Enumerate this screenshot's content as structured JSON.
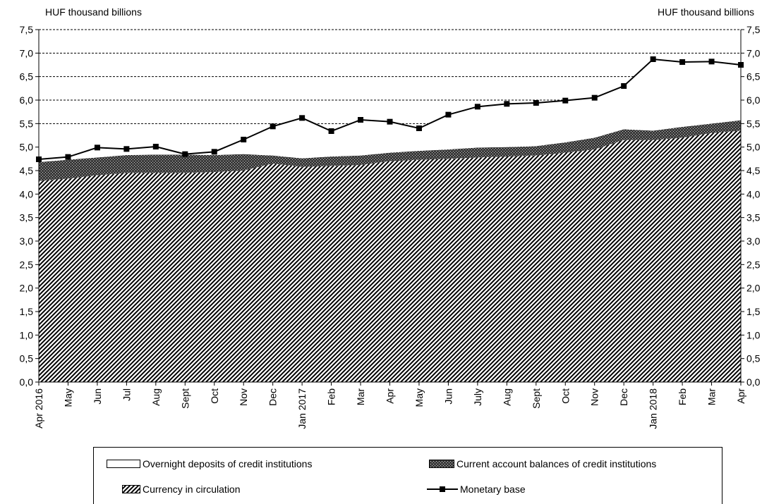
{
  "chart_data": {
    "type": "area",
    "ylabel_left": "HUF thousand billions",
    "ylabel_right": "HUF thousand billions",
    "ylim": [
      0,
      7.5
    ],
    "yticks": [
      "0,0",
      "0,5",
      "1,0",
      "1,5",
      "2,0",
      "2,5",
      "3,0",
      "3,5",
      "4,0",
      "4,5",
      "5,0",
      "5,5",
      "6,0",
      "6,5",
      "7,0",
      "7,5"
    ],
    "categories": [
      "Apr 2016",
      "May",
      "Jun",
      "Jul",
      "Aug",
      "Sept",
      "Oct",
      "Nov",
      "Dec",
      "Jan 2017",
      "Feb",
      "Mar",
      "Apr",
      "May",
      "Jun",
      "July",
      "Aug",
      "Sept",
      "Oct",
      "Nov",
      "Dec",
      "Jan 2018",
      "Feb",
      "Mar",
      "Apr"
    ],
    "series": [
      {
        "name": "Currency in circulation",
        "kind": "stacked-area",
        "pattern": "diagonal-hatch",
        "values": [
          4.28,
          4.33,
          4.4,
          4.45,
          4.45,
          4.45,
          4.47,
          4.5,
          4.65,
          4.58,
          4.6,
          4.62,
          4.7,
          4.73,
          4.75,
          4.78,
          4.8,
          4.82,
          4.88,
          4.95,
          5.15,
          5.15,
          5.2,
          5.3,
          5.35
        ]
      },
      {
        "name": "Current account balances of credit institutions",
        "kind": "stacked-area",
        "pattern": "cross-hatch",
        "values": [
          0.4,
          0.4,
          0.38,
          0.38,
          0.39,
          0.39,
          0.36,
          0.35,
          0.17,
          0.18,
          0.2,
          0.2,
          0.18,
          0.19,
          0.2,
          0.21,
          0.2,
          0.2,
          0.22,
          0.25,
          0.23,
          0.2,
          0.23,
          0.2,
          0.22
        ]
      },
      {
        "name": "Overnight deposits of credit institutions",
        "kind": "stacked-area",
        "pattern": "white",
        "values": [
          0.06,
          0.06,
          0.21,
          0.13,
          0.17,
          0.01,
          0.07,
          0.31,
          0.62,
          0.86,
          0.54,
          0.76,
          0.66,
          0.48,
          0.74,
          0.87,
          0.92,
          0.92,
          0.89,
          0.85,
          0.92,
          1.52,
          1.38,
          1.32,
          1.18
        ]
      },
      {
        "name": "Monetary base",
        "kind": "line",
        "marker": "square",
        "values": [
          4.74,
          4.79,
          4.99,
          4.96,
          5.01,
          4.85,
          4.9,
          5.16,
          5.44,
          5.62,
          5.34,
          5.58,
          5.54,
          5.4,
          5.69,
          5.86,
          5.92,
          5.94,
          5.99,
          6.05,
          6.3,
          6.87,
          6.81,
          6.82,
          6.75
        ]
      }
    ],
    "grid": "dashed horizontal above 5,0",
    "legend_position": "bottom"
  },
  "legend": {
    "overnight": "Overnight deposits of credit institutions",
    "current_account": "Current account balances of credit institutions",
    "currency": "Currency in circulation",
    "monetary_base": "Monetary base"
  }
}
